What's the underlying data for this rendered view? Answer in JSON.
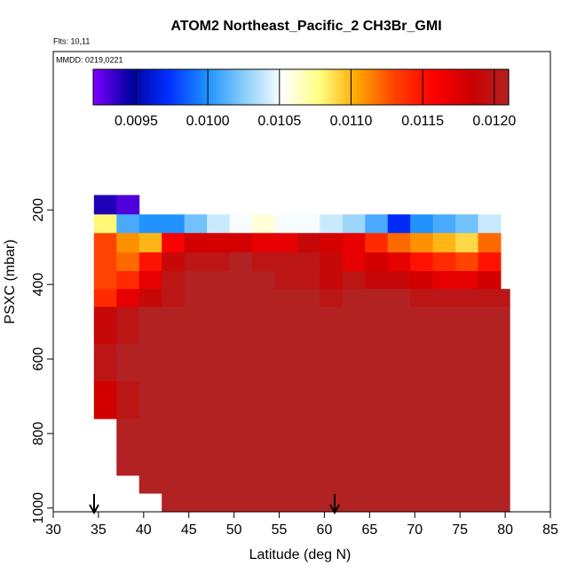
{
  "chart_data": {
    "type": "heatmap",
    "title": "ATOM2 Northeast_Pacific_2 CH3Br_GMI",
    "subtitle": "Flts: 10,11",
    "annotation": "MMDD: 0219,0221",
    "xlabel": "Latitude (deg N)",
    "ylabel": "PSXC (mbar)",
    "xlim": [
      30,
      85
    ],
    "xticks": [
      30,
      35,
      40,
      45,
      50,
      55,
      60,
      65,
      70,
      75,
      80,
      85
    ],
    "ylim": [
      1010,
      -225
    ],
    "yticks": [
      200,
      400,
      600,
      800,
      1000
    ],
    "clim": [
      0.0092,
      0.0121
    ],
    "cticks": [
      0.0095,
      {
        "value": 0.01,
        "label": "0.0100"
      },
      0.0105,
      {
        "value": 0.011,
        "label": "0.0110"
      },
      0.0115,
      {
        "value": 0.012,
        "label": "0.0120"
      }
    ],
    "colorscale": [
      "#7f00ff",
      "#0000a0",
      "#0030ff",
      "#1e90ff",
      "#87cefa",
      "#ffffff",
      "#ffff80",
      "#ffa500",
      "#ff4000",
      "#ff0000",
      "#cc0000",
      "#b22222"
    ],
    "x_edges": [
      34.5,
      37,
      39.5,
      42,
      44.5,
      47,
      49.5,
      52,
      54.5,
      57,
      59.5,
      62,
      64.5,
      67,
      69.5,
      72,
      74.5,
      77,
      79.5,
      80.5
    ],
    "y_edges": [
      160,
      212,
      262,
      314,
      364,
      412,
      460,
      560,
      660,
      760,
      860,
      912,
      960,
      1010
    ],
    "values": [
      [
        0.0094,
        0.0093,
        null,
        null,
        null,
        null,
        null,
        null,
        null,
        null,
        null,
        null,
        null,
        null,
        null,
        null,
        null,
        null,
        null
      ],
      [
        0.0108,
        0.0101,
        0.01,
        0.01,
        0.0102,
        0.0104,
        0.0105,
        0.0106,
        0.0105,
        0.0105,
        0.0104,
        0.0103,
        0.0101,
        0.0097,
        0.01,
        0.0101,
        0.0102,
        0.0104,
        null
      ],
      [
        0.0113,
        0.0111,
        0.011,
        0.0116,
        0.0118,
        0.0118,
        0.0118,
        0.0117,
        0.0117,
        0.0119,
        0.0118,
        0.0117,
        0.0114,
        0.0112,
        0.0111,
        0.011,
        0.0109,
        0.0112,
        null
      ],
      [
        0.0113,
        0.0112,
        0.0115,
        0.0119,
        0.012,
        0.012,
        0.0121,
        0.012,
        0.012,
        0.012,
        0.0119,
        0.0117,
        0.0118,
        0.0117,
        0.0115,
        0.0114,
        0.0113,
        0.0115,
        null
      ],
      [
        0.0113,
        0.0114,
        0.0117,
        0.012,
        0.0121,
        0.0121,
        0.0121,
        0.0121,
        0.012,
        0.012,
        0.0119,
        0.012,
        0.0119,
        0.0119,
        0.0118,
        0.0117,
        0.0117,
        0.0118,
        null
      ],
      [
        0.0114,
        0.0117,
        0.0119,
        0.012,
        0.0121,
        0.0121,
        0.0121,
        0.0121,
        0.0121,
        0.0121,
        0.012,
        0.0121,
        0.0121,
        0.0121,
        0.012,
        0.012,
        0.012,
        0.012,
        0.012
      ],
      [
        0.0119,
        0.012,
        0.0121,
        0.0121,
        0.0121,
        0.0121,
        0.0121,
        0.0121,
        0.0121,
        0.0121,
        0.0121,
        0.0121,
        0.0121,
        0.0121,
        0.0121,
        0.0121,
        0.0121,
        0.0121,
        0.0121
      ],
      [
        0.012,
        0.0121,
        0.0121,
        0.0121,
        0.0121,
        0.0121,
        0.0121,
        0.0121,
        0.0121,
        0.0121,
        0.0121,
        0.0121,
        0.0121,
        0.0121,
        0.0121,
        0.0121,
        0.0121,
        0.0121,
        0.0121
      ],
      [
        0.0118,
        0.012,
        0.0121,
        0.0121,
        0.0121,
        0.0121,
        0.0121,
        0.0121,
        0.0121,
        0.0121,
        0.0121,
        0.0121,
        0.0121,
        0.0121,
        0.0121,
        0.0121,
        0.0121,
        0.0121,
        0.0121
      ],
      [
        null,
        0.0121,
        0.0121,
        0.0121,
        0.0121,
        0.0121,
        0.0121,
        0.0121,
        0.0121,
        0.0121,
        0.0121,
        0.0121,
        0.0121,
        0.0121,
        0.0121,
        0.0121,
        0.0121,
        0.0121,
        0.0121
      ],
      [
        null,
        0.0121,
        0.0121,
        0.0121,
        0.0121,
        0.0121,
        0.0121,
        0.0121,
        0.0121,
        0.0121,
        0.0121,
        0.0121,
        0.0121,
        0.0121,
        0.0121,
        0.0121,
        0.0121,
        0.0121,
        0.0121
      ],
      [
        null,
        null,
        0.0121,
        0.0121,
        0.0121,
        0.0121,
        0.0121,
        0.0121,
        0.0121,
        0.0121,
        0.0121,
        0.0121,
        0.0121,
        0.0121,
        0.0121,
        0.0121,
        0.0121,
        0.0121,
        0.0121
      ],
      [
        null,
        null,
        null,
        0.0121,
        0.0121,
        0.0121,
        0.0121,
        0.0121,
        0.0121,
        0.0121,
        0.0121,
        0.0121,
        0.0121,
        0.0121,
        0.0121,
        0.0121,
        0.0121,
        0.0121,
        0.0121
      ]
    ]
  }
}
